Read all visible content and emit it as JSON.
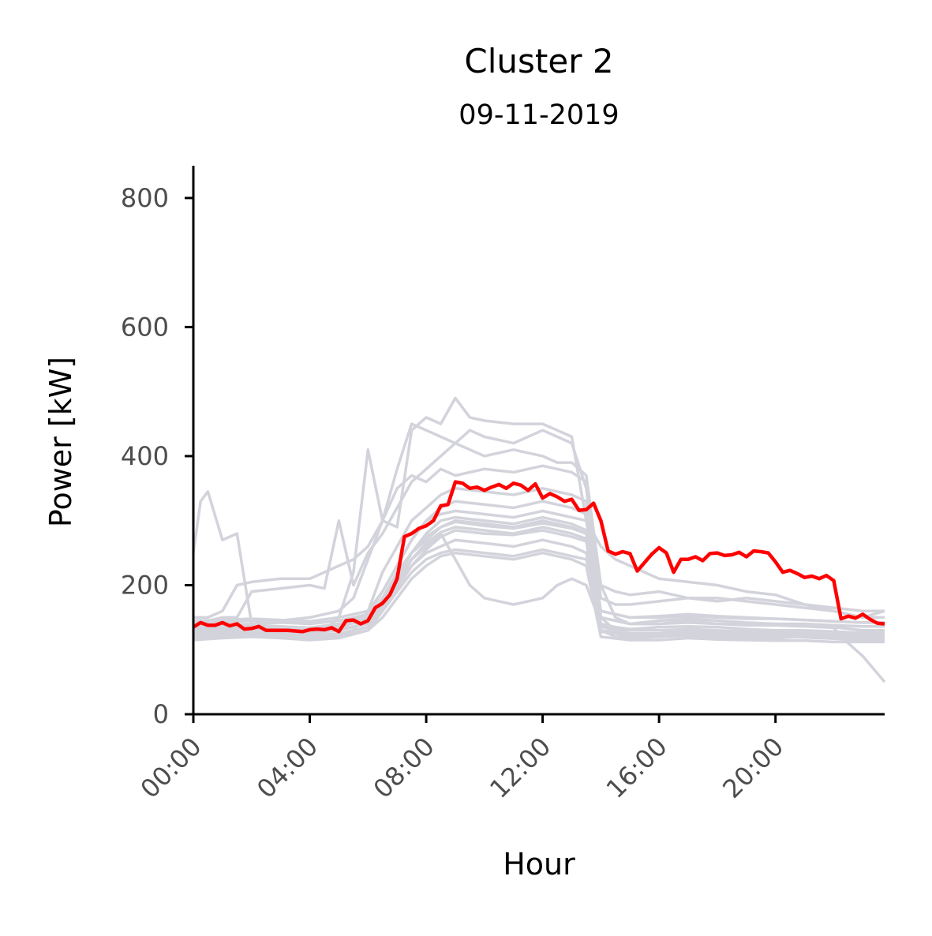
{
  "chart_data": {
    "type": "line",
    "title": "Cluster 2",
    "subtitle": "09-11-2019",
    "xlabel": "Hour",
    "ylabel": "Power [kW]",
    "xlim": [
      0,
      23.75
    ],
    "ylim": [
      0,
      850
    ],
    "x_ticks": [
      {
        "value": 0,
        "label": "00:00"
      },
      {
        "value": 4,
        "label": "04:00"
      },
      {
        "value": 8,
        "label": "08:00"
      },
      {
        "value": 12,
        "label": "12:00"
      },
      {
        "value": 16,
        "label": "16:00"
      },
      {
        "value": 20,
        "label": "20:00"
      }
    ],
    "y_ticks": [
      {
        "value": 0,
        "label": "0"
      },
      {
        "value": 200,
        "label": "200"
      },
      {
        "value": 400,
        "label": "400"
      },
      {
        "value": 600,
        "label": "600"
      },
      {
        "value": 800,
        "label": "800"
      }
    ],
    "grid": false,
    "legend": "none",
    "colors": {
      "highlight": "#ff0000",
      "background_series": "#d3d3dc",
      "axis": "#000000",
      "tick_text": "#4d4d4d"
    },
    "highlight_series": {
      "x": [
        0,
        0.25,
        0.5,
        0.75,
        1,
        1.25,
        1.5,
        1.75,
        2,
        2.25,
        2.5,
        2.75,
        3,
        3.25,
        3.5,
        3.75,
        4,
        4.25,
        4.5,
        4.75,
        5,
        5.25,
        5.5,
        5.75,
        6,
        6.25,
        6.5,
        6.75,
        7,
        7.25,
        7.5,
        7.75,
        8,
        8.25,
        8.5,
        8.75,
        9,
        9.25,
        9.5,
        9.75,
        10,
        10.25,
        10.5,
        10.75,
        11,
        11.25,
        11.5,
        11.75,
        12,
        12.25,
        12.5,
        12.75,
        13,
        13.25,
        13.5,
        13.75,
        14,
        14.25,
        14.5,
        14.75,
        15,
        15.25,
        15.5,
        15.75,
        16,
        16.25,
        16.5,
        16.75,
        17,
        17.25,
        17.5,
        17.75,
        18,
        18.25,
        18.5,
        18.75,
        19,
        19.25,
        19.5,
        19.75,
        20,
        20.25,
        20.5,
        20.75,
        21,
        21.25,
        21.5,
        21.75,
        22,
        22.25,
        22.5,
        22.75,
        23,
        23.25,
        23.5,
        23.75
      ],
      "values": [
        135,
        142,
        138,
        138,
        142,
        137,
        140,
        132,
        133,
        136,
        130,
        130,
        130,
        130,
        129,
        128,
        131,
        132,
        131,
        134,
        128,
        145,
        146,
        140,
        145,
        165,
        172,
        185,
        210,
        275,
        280,
        288,
        292,
        300,
        323,
        325,
        360,
        358,
        350,
        352,
        347,
        352,
        356,
        350,
        358,
        355,
        347,
        357,
        335,
        342,
        337,
        330,
        333,
        316,
        317,
        327,
        300,
        253,
        248,
        252,
        249,
        222,
        235,
        248,
        258,
        250,
        220,
        240,
        240,
        244,
        238,
        249,
        250,
        246,
        247,
        251,
        244,
        253,
        252,
        250,
        236,
        220,
        223,
        218,
        212,
        214,
        210,
        215,
        207,
        148,
        152,
        149,
        155,
        147,
        141,
        140
      ]
    },
    "background_series": [
      {
        "x": [
          0,
          0.25,
          0.5,
          1,
          1.5,
          2,
          3,
          4,
          4.5,
          5,
          5.5,
          6,
          6.5,
          7,
          7.5,
          8,
          8.5,
          9,
          9.5,
          10,
          11,
          12,
          12.5,
          13,
          13.5,
          14,
          14.5,
          15,
          16,
          17,
          18,
          19,
          20,
          21,
          22,
          23,
          23.75
        ],
        "values": [
          250,
          330,
          345,
          270,
          280,
          140,
          130,
          128,
          130,
          150,
          220,
          410,
          300,
          290,
          440,
          460,
          450,
          490,
          460,
          455,
          450,
          450,
          440,
          430,
          300,
          260,
          240,
          230,
          210,
          205,
          200,
          190,
          185,
          170,
          160,
          150,
          160
        ]
      },
      {
        "x": [
          0,
          0.5,
          1,
          1.5,
          2,
          3,
          4,
          4.5,
          5,
          5.5,
          6,
          6.5,
          7,
          7.5,
          8,
          8.5,
          9,
          9.5,
          10,
          11,
          12,
          12.5,
          13,
          13.5,
          14,
          14.5,
          15,
          16,
          17,
          18,
          19,
          20,
          21,
          22,
          23,
          23.75
        ],
        "values": [
          150,
          150,
          160,
          200,
          205,
          210,
          210,
          220,
          230,
          240,
          260,
          300,
          380,
          450,
          440,
          430,
          420,
          440,
          430,
          420,
          440,
          430,
          420,
          350,
          180,
          170,
          170,
          175,
          180,
          175,
          180,
          175,
          170,
          165,
          160,
          160
        ]
      },
      {
        "x": [
          0,
          1,
          1.5,
          2,
          3,
          4,
          4.5,
          5,
          5.5,
          6,
          6.5,
          7,
          7.5,
          8,
          8.5,
          9,
          9.5,
          10,
          11,
          12,
          12.5,
          13,
          13.5,
          14,
          14.5,
          15,
          16,
          17,
          18,
          19,
          20,
          21,
          22,
          23,
          23.75
        ],
        "values": [
          140,
          150,
          150,
          190,
          195,
          200,
          195,
          300,
          200,
          250,
          280,
          320,
          360,
          380,
          400,
          420,
          410,
          400,
          410,
          400,
          390,
          390,
          370,
          200,
          190,
          185,
          190,
          180,
          180,
          175,
          170,
          165,
          160,
          150,
          150
        ]
      },
      {
        "x": [
          0,
          1,
          2,
          3,
          4,
          5,
          5.5,
          6,
          6.5,
          7,
          7.5,
          8,
          8.5,
          9,
          10,
          11,
          12,
          12.5,
          13,
          13.5,
          14,
          14.5,
          15,
          16,
          17,
          18,
          19,
          20,
          21,
          22,
          23,
          23.75
        ],
        "values": [
          130,
          135,
          140,
          145,
          150,
          160,
          180,
          240,
          300,
          350,
          370,
          360,
          380,
          370,
          380,
          375,
          385,
          380,
          375,
          360,
          200,
          150,
          140,
          140,
          145,
          140,
          140,
          140,
          138,
          135,
          130,
          130
        ]
      },
      {
        "x": [
          0,
          1,
          2,
          3,
          4,
          5,
          5.5,
          6,
          6.5,
          7,
          7.5,
          8,
          8.5,
          9,
          10,
          11,
          12,
          12.5,
          13,
          13.5,
          14,
          14.5,
          15,
          16,
          17,
          18,
          19,
          20,
          21,
          22,
          23,
          23.75
        ],
        "values": [
          120,
          125,
          125,
          125,
          120,
          120,
          130,
          160,
          220,
          260,
          300,
          320,
          340,
          350,
          345,
          340,
          350,
          345,
          340,
          330,
          150,
          130,
          125,
          125,
          130,
          128,
          125,
          125,
          125,
          122,
          120,
          120
        ]
      },
      {
        "x": [
          0,
          1,
          2,
          3,
          4,
          5,
          6,
          6.5,
          7,
          7.5,
          8,
          8.5,
          9,
          9.5,
          10,
          11,
          12,
          12.5,
          13,
          13.5,
          14,
          14.5,
          15,
          16,
          17,
          18,
          19,
          20,
          21,
          22,
          23,
          23.75
        ],
        "values": [
          115,
          118,
          120,
          118,
          115,
          118,
          130,
          160,
          200,
          240,
          260,
          280,
          240,
          200,
          180,
          170,
          180,
          200,
          210,
          200,
          140,
          125,
          120,
          120,
          125,
          122,
          120,
          120,
          120,
          118,
          115,
          115
        ]
      },
      {
        "x": [
          0,
          1,
          2,
          3,
          4,
          5,
          6,
          6.5,
          7,
          7.5,
          8,
          8.5,
          9,
          10,
          11,
          12,
          12.5,
          13,
          13.5,
          14,
          14.5,
          15,
          16,
          17,
          18,
          19,
          20,
          21,
          22,
          23,
          23.75
        ],
        "values": [
          140,
          138,
          140,
          142,
          140,
          145,
          150,
          180,
          220,
          250,
          270,
          290,
          300,
          295,
          290,
          300,
          295,
          290,
          280,
          130,
          120,
          118,
          120,
          122,
          120,
          118,
          118,
          120,
          118,
          116,
          116
        ]
      },
      {
        "x": [
          0,
          1,
          2,
          3,
          4,
          5,
          6,
          6.5,
          7,
          7.5,
          8,
          8.5,
          9,
          10,
          11,
          12,
          12.5,
          13,
          13.5,
          14,
          14.5,
          15,
          16,
          17,
          18,
          19,
          20,
          21,
          22,
          23,
          23.75
        ],
        "values": [
          128,
          130,
          132,
          130,
          128,
          132,
          140,
          170,
          200,
          230,
          250,
          260,
          270,
          265,
          260,
          270,
          265,
          260,
          250,
          140,
          135,
          132,
          135,
          136,
          135,
          132,
          130,
          130,
          128,
          126,
          126
        ]
      },
      {
        "x": [
          0,
          1,
          2,
          3,
          4,
          5,
          6,
          6.5,
          7,
          7.5,
          8,
          8.5,
          9,
          10,
          11,
          12,
          12.5,
          13,
          13.5,
          14,
          14.5,
          15,
          16,
          17,
          18,
          19,
          20,
          21,
          22,
          23,
          23.75
        ],
        "values": [
          122,
          124,
          126,
          124,
          122,
          125,
          135,
          160,
          190,
          220,
          240,
          250,
          255,
          250,
          245,
          255,
          250,
          245,
          240,
          150,
          145,
          140,
          145,
          148,
          145,
          142,
          140,
          140,
          138,
          136,
          136
        ]
      },
      {
        "x": [
          0,
          1,
          2,
          3,
          4,
          5,
          6,
          6.5,
          7,
          7.5,
          8,
          8.5,
          9,
          10,
          11,
          12,
          12.5,
          13,
          13.5,
          14,
          14.5,
          15,
          16,
          17,
          18,
          19,
          20,
          21,
          22,
          23,
          23.75
        ],
        "values": [
          145,
          146,
          148,
          146,
          144,
          150,
          160,
          190,
          230,
          270,
          300,
          310,
          315,
          310,
          305,
          315,
          310,
          305,
          300,
          160,
          155,
          150,
          152,
          155,
          152,
          150,
          148,
          146,
          144,
          142,
          142
        ]
      },
      {
        "x": [
          0,
          1,
          2,
          3,
          4,
          5,
          6,
          6.5,
          7,
          7.5,
          8,
          8.5,
          9,
          10,
          11,
          12,
          12.5,
          13,
          13.5,
          14,
          15,
          16,
          17,
          18,
          19,
          20,
          21,
          22,
          23,
          23.75
        ],
        "values": [
          118,
          120,
          122,
          120,
          118,
          122,
          130,
          150,
          180,
          210,
          230,
          245,
          250,
          245,
          240,
          250,
          245,
          240,
          230,
          120,
          115,
          115,
          118,
          116,
          115,
          114,
          114,
          112,
          112,
          112
        ]
      },
      {
        "x": [
          0,
          1,
          2,
          3,
          4,
          5,
          6,
          6.5,
          7,
          7.5,
          8,
          8.5,
          9,
          10,
          11,
          12,
          12.5,
          13,
          13.5,
          14,
          15,
          16,
          17,
          18,
          19,
          20,
          21,
          22,
          23,
          23.75
        ],
        "values": [
          135,
          136,
          138,
          136,
          134,
          140,
          150,
          175,
          210,
          250,
          280,
          300,
          305,
          300,
          295,
          305,
          300,
          295,
          285,
          135,
          130,
          130,
          132,
          130,
          128,
          128,
          126,
          124,
          122,
          122
        ]
      },
      {
        "x": [
          0,
          1,
          2,
          3,
          4,
          5,
          6,
          6.5,
          7,
          7.5,
          8,
          8.5,
          9,
          10,
          11,
          12,
          12.5,
          13,
          13.5,
          14,
          15,
          16,
          17,
          18,
          19,
          20,
          21,
          22,
          23,
          23.75
        ],
        "values": [
          125,
          128,
          130,
          128,
          126,
          130,
          140,
          165,
          195,
          230,
          255,
          275,
          285,
          280,
          278,
          285,
          280,
          275,
          268,
          130,
          125,
          125,
          128,
          126,
          124,
          124,
          122,
          120,
          118,
          118
        ]
      },
      {
        "x": [
          0,
          1,
          2,
          3,
          4,
          5,
          6,
          6.5,
          7,
          7.5,
          8,
          8.5,
          9,
          10,
          11,
          12,
          12.5,
          13,
          13.5,
          14,
          15,
          16,
          17,
          18,
          19,
          20,
          21,
          22,
          22.5,
          23,
          23.75
        ],
        "values": [
          130,
          132,
          135,
          133,
          130,
          135,
          148,
          180,
          215,
          250,
          275,
          290,
          298,
          292,
          288,
          296,
          292,
          288,
          280,
          150,
          140,
          140,
          142,
          140,
          138,
          138,
          136,
          134,
          110,
          90,
          50
        ]
      },
      {
        "x": [
          0,
          1,
          2,
          3,
          4,
          5,
          6,
          6.5,
          7,
          7.5,
          8,
          8.5,
          9,
          10,
          11,
          12,
          12.5,
          13,
          13.5,
          14,
          15,
          16,
          17,
          18,
          19,
          20,
          21,
          22,
          23,
          23.75
        ],
        "values": [
          140,
          142,
          145,
          143,
          140,
          145,
          155,
          190,
          230,
          270,
          300,
          320,
          330,
          325,
          320,
          330,
          325,
          320,
          310,
          160,
          150,
          150,
          152,
          150,
          148,
          148,
          146,
          144,
          142,
          142
        ]
      },
      {
        "x": [
          0,
          1,
          2,
          3,
          4,
          5,
          6,
          6.5,
          7,
          7.5,
          8,
          8.5,
          9,
          10,
          11,
          12,
          12.5,
          13,
          13.5,
          14,
          15,
          16,
          17,
          18,
          19,
          20,
          21,
          22,
          23,
          23.75
        ],
        "values": [
          132,
          134,
          136,
          134,
          132,
          136,
          146,
          172,
          205,
          240,
          265,
          282,
          290,
          285,
          280,
          290,
          285,
          280,
          272,
          128,
          122,
          122,
          125,
          123,
          121,
          121,
          119,
          117,
          115,
          115
        ]
      }
    ]
  }
}
